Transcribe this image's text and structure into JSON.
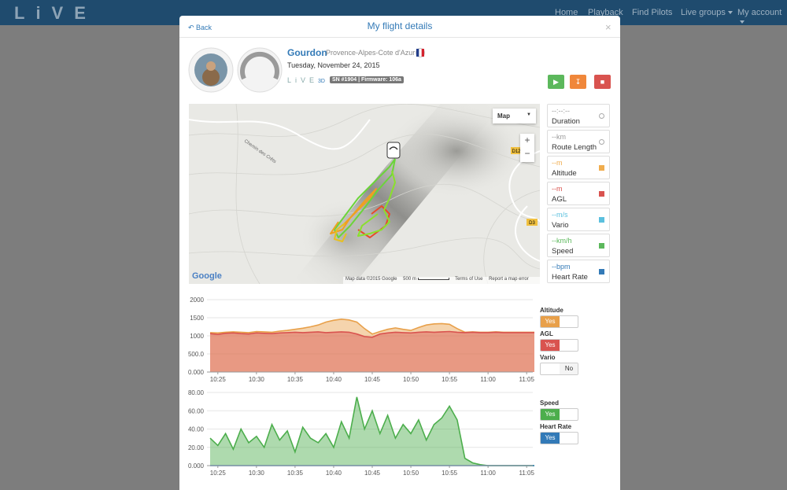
{
  "nav": {
    "logo": "LiVE",
    "items": [
      "Home",
      "Playback",
      "Find Pilots",
      "Live groups",
      "My account"
    ]
  },
  "modal": {
    "back": "Back",
    "title": "My flight details",
    "close": "×"
  },
  "flight": {
    "site": "Gourdon",
    "region": "Provence-Alpes-Cote d'Azur",
    "date": "Tuesday, November 24, 2015",
    "device_model": "3D",
    "device_badge": "SN #1904 | Firmware: 106a"
  },
  "map": {
    "type_button": "Map",
    "zoom_in": "+",
    "zoom_out": "−",
    "brand": "Google",
    "attribution": "Map data ©2015 Google",
    "scale": "500 m",
    "terms": "Terms of Use",
    "report": "Report a map error",
    "road_labels": [
      "D12",
      "D3",
      "Chemin des Crêts"
    ]
  },
  "stats": [
    {
      "value": "--:--:--",
      "label": "Duration",
      "color": "#9a9a9a"
    },
    {
      "value": "--km",
      "label": "Route Length",
      "color": "#9a9a9a"
    },
    {
      "value": "--m",
      "label": "Altitude",
      "color": "#f0ad4e"
    },
    {
      "value": "--m",
      "label": "AGL",
      "color": "#d9534f"
    },
    {
      "value": "--m/s",
      "label": "Vario",
      "color": "#5bc0de"
    },
    {
      "value": "--km/h",
      "label": "Speed",
      "color": "#5cb85c"
    },
    {
      "value": "--bpm",
      "label": "Heart Rate",
      "color": "#337ab7"
    }
  ],
  "chart_data": [
    {
      "type": "area",
      "x": [
        "10:24",
        "10:25",
        "10:26",
        "10:27",
        "10:28",
        "10:29",
        "10:30",
        "10:31",
        "10:32",
        "10:33",
        "10:34",
        "10:35",
        "10:36",
        "10:37",
        "10:38",
        "10:39",
        "10:40",
        "10:41",
        "10:42",
        "10:43",
        "10:44",
        "10:45",
        "10:46",
        "10:47",
        "10:48",
        "10:49",
        "10:50",
        "10:51",
        "10:52",
        "10:53",
        "10:54",
        "10:55",
        "10:56",
        "10:57",
        "10:58",
        "10:59",
        "11:00",
        "11:01",
        "11:02",
        "11:03",
        "11:04",
        "11:05",
        "11:06"
      ],
      "xlim": [
        "10:24",
        "11:06"
      ],
      "xticks": [
        "10:25",
        "10:30",
        "10:35",
        "10:40",
        "10:45",
        "10:50",
        "10:55",
        "11:00",
        "11:05"
      ],
      "ylim": [
        0,
        2000
      ],
      "yticks": [
        {
          "value": 0,
          "label": "0.000"
        },
        {
          "value": 500,
          "label": "500.0"
        },
        1000,
        1500,
        2000
      ],
      "grid": true,
      "series": [
        {
          "name": "Altitude",
          "toggle": "Yes",
          "color": "#e8a04a",
          "values": [
            1090,
            1080,
            1100,
            1110,
            1100,
            1090,
            1120,
            1110,
            1100,
            1130,
            1150,
            1180,
            1210,
            1250,
            1300,
            1380,
            1430,
            1460,
            1440,
            1380,
            1200,
            1050,
            1120,
            1180,
            1220,
            1180,
            1150,
            1230,
            1300,
            1330,
            1340,
            1320,
            1200,
            1100,
            1110,
            1100,
            1100,
            1110,
            1100,
            1100,
            1100,
            1100,
            1100
          ]
        },
        {
          "name": "AGL",
          "toggle": "Yes",
          "color": "#d9534f",
          "values": [
            1060,
            1040,
            1070,
            1080,
            1060,
            1050,
            1080,
            1070,
            1060,
            1080,
            1090,
            1100,
            1090,
            1100,
            1110,
            1090,
            1100,
            1110,
            1100,
            1050,
            980,
            960,
            1050,
            1080,
            1100,
            1090,
            1080,
            1100,
            1110,
            1100,
            1110,
            1120,
            1100,
            1090,
            1100,
            1090,
            1090,
            1100,
            1090,
            1090,
            1090,
            1090,
            1090
          ]
        }
      ],
      "hidden_series": [
        {
          "name": "Vario",
          "toggle": "No"
        }
      ]
    },
    {
      "type": "area",
      "x": [
        "10:24",
        "10:25",
        "10:26",
        "10:27",
        "10:28",
        "10:29",
        "10:30",
        "10:31",
        "10:32",
        "10:33",
        "10:34",
        "10:35",
        "10:36",
        "10:37",
        "10:38",
        "10:39",
        "10:40",
        "10:41",
        "10:42",
        "10:43",
        "10:44",
        "10:45",
        "10:46",
        "10:47",
        "10:48",
        "10:49",
        "10:50",
        "10:51",
        "10:52",
        "10:53",
        "10:54",
        "10:55",
        "10:56",
        "10:57",
        "10:58",
        "10:59",
        "11:00",
        "11:01",
        "11:02",
        "11:03",
        "11:04",
        "11:05",
        "11:06"
      ],
      "xlim": [
        "10:24",
        "11:06"
      ],
      "xticks": [
        "10:25",
        "10:30",
        "10:35",
        "10:40",
        "10:45",
        "10:50",
        "10:55",
        "11:00",
        "11:05"
      ],
      "ylim": [
        0,
        80
      ],
      "yticks": [
        {
          "value": 0,
          "label": "0.000"
        },
        {
          "value": 20,
          "label": "20.00"
        },
        {
          "value": 40,
          "label": "40.00"
        },
        {
          "value": 60,
          "label": "60.00"
        },
        {
          "value": 80,
          "label": "80.00"
        }
      ],
      "grid": true,
      "series": [
        {
          "name": "Speed",
          "toggle": "Yes",
          "color": "#4cae4c",
          "values": [
            30,
            22,
            35,
            18,
            40,
            25,
            32,
            20,
            45,
            28,
            38,
            15,
            42,
            30,
            25,
            35,
            20,
            48,
            30,
            75,
            40,
            60,
            35,
            55,
            30,
            45,
            35,
            50,
            28,
            45,
            52,
            65,
            50,
            8,
            3,
            1,
            0,
            0,
            0,
            0,
            0,
            0,
            0
          ]
        },
        {
          "name": "Heart Rate",
          "toggle": "Yes",
          "color": "#337ab7",
          "values": [
            0,
            0,
            0,
            0,
            0,
            0,
            0,
            0,
            0,
            0,
            0,
            0,
            0,
            0,
            0,
            0,
            0,
            0,
            0,
            0,
            0,
            0,
            0,
            0,
            0,
            0,
            0,
            0,
            0,
            0,
            0,
            0,
            0,
            0,
            0,
            0,
            0,
            0,
            0,
            0,
            0,
            0,
            0
          ]
        }
      ]
    }
  ]
}
